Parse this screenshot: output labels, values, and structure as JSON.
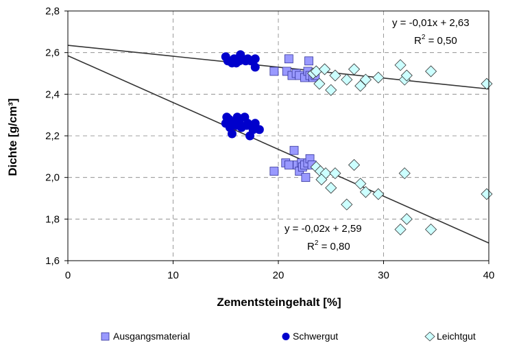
{
  "chart_data": {
    "type": "scatter",
    "title": "",
    "xlabel": "Zementsteingehalt [%]",
    "ylabel": "Dichte [g/cm³]",
    "xlim": [
      0,
      40
    ],
    "ylim": [
      1.6,
      2.8
    ],
    "x_ticks": [
      0,
      10,
      20,
      30,
      40
    ],
    "x_tick_labels": [
      "0",
      "10",
      "20",
      "30",
      "40"
    ],
    "y_ticks": [
      1.6,
      1.8,
      2.0,
      2.2,
      2.4,
      2.6,
      2.8
    ],
    "y_tick_labels": [
      "1,6",
      "1,8",
      "2,0",
      "2,2",
      "2,4",
      "2,6",
      "2,8"
    ],
    "grid": "dashed",
    "legend_position": "bottom",
    "colors": {
      "ausgangsmaterial": "#9999ff",
      "schwergut": "#0000cc",
      "leichtgut": "#ccffff",
      "trend": "#333333"
    },
    "series": [
      {
        "name": "Ausgangsmaterial",
        "marker": "square",
        "points": [
          [
            19.6,
            2.51
          ],
          [
            20.8,
            2.51
          ],
          [
            21.0,
            2.57
          ],
          [
            21.3,
            2.49
          ],
          [
            21.7,
            2.5
          ],
          [
            22.0,
            2.49
          ],
          [
            22.5,
            2.48
          ],
          [
            22.8,
            2.51
          ],
          [
            22.9,
            2.56
          ],
          [
            23.0,
            2.49
          ],
          [
            23.3,
            2.48
          ],
          [
            23.5,
            2.49
          ],
          [
            19.6,
            2.03
          ],
          [
            20.7,
            2.07
          ],
          [
            21.0,
            2.06
          ],
          [
            21.5,
            2.13
          ],
          [
            21.8,
            2.06
          ],
          [
            22.0,
            2.03
          ],
          [
            22.2,
            2.07
          ],
          [
            22.3,
            2.05
          ],
          [
            22.5,
            2.06
          ],
          [
            22.6,
            2.0
          ],
          [
            22.8,
            2.07
          ],
          [
            23.0,
            2.09
          ],
          [
            23.2,
            2.06
          ]
        ]
      },
      {
        "name": "Schwergut",
        "marker": "circle",
        "points": [
          [
            15.0,
            2.58
          ],
          [
            15.3,
            2.56
          ],
          [
            15.6,
            2.55
          ],
          [
            15.8,
            2.57
          ],
          [
            16.0,
            2.55
          ],
          [
            16.3,
            2.56
          ],
          [
            16.4,
            2.59
          ],
          [
            16.6,
            2.57
          ],
          [
            16.9,
            2.56
          ],
          [
            17.1,
            2.57
          ],
          [
            17.4,
            2.56
          ],
          [
            17.6,
            2.56
          ],
          [
            17.8,
            2.57
          ],
          [
            17.8,
            2.53
          ],
          [
            15.2,
            2.56
          ],
          [
            15.9,
            2.56
          ],
          [
            15.0,
            2.26
          ],
          [
            15.3,
            2.28
          ],
          [
            15.4,
            2.24
          ],
          [
            15.6,
            2.21
          ],
          [
            15.8,
            2.26
          ],
          [
            16.1,
            2.29
          ],
          [
            16.3,
            2.26
          ],
          [
            16.5,
            2.24
          ],
          [
            16.8,
            2.29
          ],
          [
            17.0,
            2.25
          ],
          [
            17.3,
            2.2
          ],
          [
            17.6,
            2.23
          ],
          [
            17.8,
            2.26
          ],
          [
            18.2,
            2.23
          ],
          [
            15.1,
            2.29
          ],
          [
            16.0,
            2.25
          ],
          [
            17.1,
            2.26
          ]
        ]
      },
      {
        "name": "Leichtgut",
        "marker": "diamond",
        "points": [
          [
            23.3,
            2.5
          ],
          [
            23.6,
            2.51
          ],
          [
            23.9,
            2.45
          ],
          [
            24.4,
            2.52
          ],
          [
            25.0,
            2.42
          ],
          [
            25.4,
            2.49
          ],
          [
            26.5,
            2.47
          ],
          [
            27.2,
            2.52
          ],
          [
            27.8,
            2.44
          ],
          [
            28.3,
            2.47
          ],
          [
            29.5,
            2.48
          ],
          [
            31.6,
            2.54
          ],
          [
            32.0,
            2.47
          ],
          [
            32.2,
            2.49
          ],
          [
            34.5,
            2.51
          ],
          [
            39.8,
            2.45
          ],
          [
            23.6,
            2.05
          ],
          [
            24.0,
            2.03
          ],
          [
            24.5,
            2.02
          ],
          [
            24.1,
            1.99
          ],
          [
            25.0,
            1.95
          ],
          [
            25.4,
            2.02
          ],
          [
            26.5,
            1.87
          ],
          [
            27.2,
            2.06
          ],
          [
            27.8,
            1.97
          ],
          [
            28.3,
            1.93
          ],
          [
            29.5,
            1.92
          ],
          [
            31.6,
            1.75
          ],
          [
            32.0,
            2.02
          ],
          [
            32.2,
            1.8
          ],
          [
            34.5,
            1.75
          ],
          [
            39.8,
            1.92
          ]
        ]
      }
    ],
    "trendlines": [
      {
        "x0": 0,
        "y0": 2.635,
        "x1": 40,
        "y1": 2.425
      },
      {
        "x0": 0,
        "y0": 2.585,
        "x1": 40,
        "y1": 1.685
      }
    ],
    "annotations": {
      "upper_eq": "y = -0,01x + 2,63",
      "upper_r2_prefix": "R",
      "upper_r2_exp": "2",
      "upper_r2_value": " = 0,50",
      "lower_eq": "y = -0,02x + 2,59",
      "lower_r2_prefix": "R",
      "lower_r2_exp": "2",
      "lower_r2_value": " = 0,80"
    }
  }
}
